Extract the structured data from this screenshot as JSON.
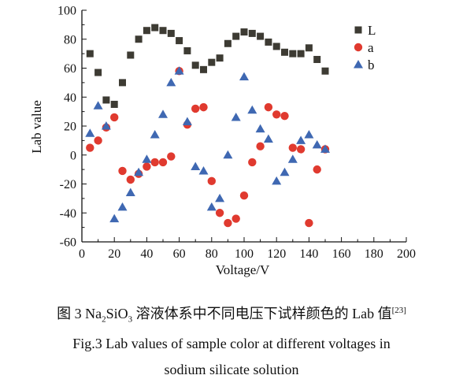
{
  "chart_data": {
    "type": "scatter",
    "xlabel": "Voltage/V",
    "ylabel": "Lab value",
    "xlim": [
      0,
      200
    ],
    "ylim": [
      -60,
      100
    ],
    "xticks": [
      "0",
      "10",
      "20",
      "30",
      "40",
      "50",
      "60",
      "70",
      "80",
      "90",
      "100",
      "110",
      "120",
      "130",
      "140",
      "150",
      "160",
      "170",
      "180",
      "190",
      "200"
    ],
    "yticks": [
      "-60",
      "-40",
      "-20",
      "0",
      "20",
      "40",
      "60",
      "80",
      "100"
    ],
    "grid": false,
    "legend_position": "top-right",
    "series": [
      {
        "name": "L",
        "marker": "square",
        "color": "#3d3b33",
        "x": [
          5,
          10,
          15,
          20,
          25,
          30,
          35,
          40,
          45,
          50,
          55,
          60,
          65,
          70,
          75,
          80,
          85,
          90,
          95,
          100,
          105,
          110,
          115,
          120,
          125,
          130,
          135,
          140,
          145,
          150
        ],
        "y": [
          70,
          57,
          38,
          35,
          50,
          69,
          80,
          86,
          88,
          86,
          84,
          79,
          72,
          62,
          59,
          64,
          67,
          77,
          82,
          85,
          84,
          82,
          78,
          75,
          71,
          70,
          70,
          74,
          66,
          58
        ]
      },
      {
        "name": "a",
        "marker": "circle",
        "color": "#e03a2f",
        "x": [
          5,
          10,
          15,
          20,
          25,
          30,
          35,
          40,
          45,
          50,
          55,
          60,
          65,
          70,
          75,
          80,
          85,
          90,
          95,
          100,
          105,
          110,
          115,
          120,
          125,
          130,
          135,
          140,
          145,
          150
        ],
        "y": [
          5,
          10,
          19,
          26,
          -11,
          -17,
          -13,
          -8,
          -5,
          -5,
          -1,
          58,
          21,
          32,
          33,
          -18,
          -40,
          -47,
          -44,
          -28,
          -5,
          6,
          33,
          28,
          27,
          5,
          4,
          -47,
          -10,
          4
        ]
      },
      {
        "name": "b",
        "marker": "triangle",
        "color": "#3f68b2",
        "x": [
          5,
          10,
          15,
          20,
          25,
          30,
          35,
          40,
          45,
          50,
          55,
          60,
          65,
          70,
          75,
          80,
          85,
          90,
          95,
          100,
          105,
          110,
          115,
          120,
          125,
          130,
          135,
          140,
          145,
          150
        ],
        "y": [
          15,
          34,
          20,
          -44,
          -36,
          -26,
          -12,
          -3,
          14,
          28,
          50,
          58,
          23,
          -8,
          -11,
          -36,
          -30,
          0,
          26,
          54,
          31,
          18,
          11,
          -18,
          -12,
          -3,
          10,
          14,
          7,
          4
        ]
      }
    ]
  },
  "captions": {
    "zh_pre": "图 3    Na",
    "zh_sub1": "2",
    "zh_mid1": "SiO",
    "zh_sub2": "3",
    "zh_mid2": " 溶液体系中不同电压下试样颜色的 Lab 值",
    "zh_sup": "[23]",
    "en_line1": "Fig.3    Lab values of sample color at different voltages in",
    "en_line2": "sodium silicate solution"
  }
}
